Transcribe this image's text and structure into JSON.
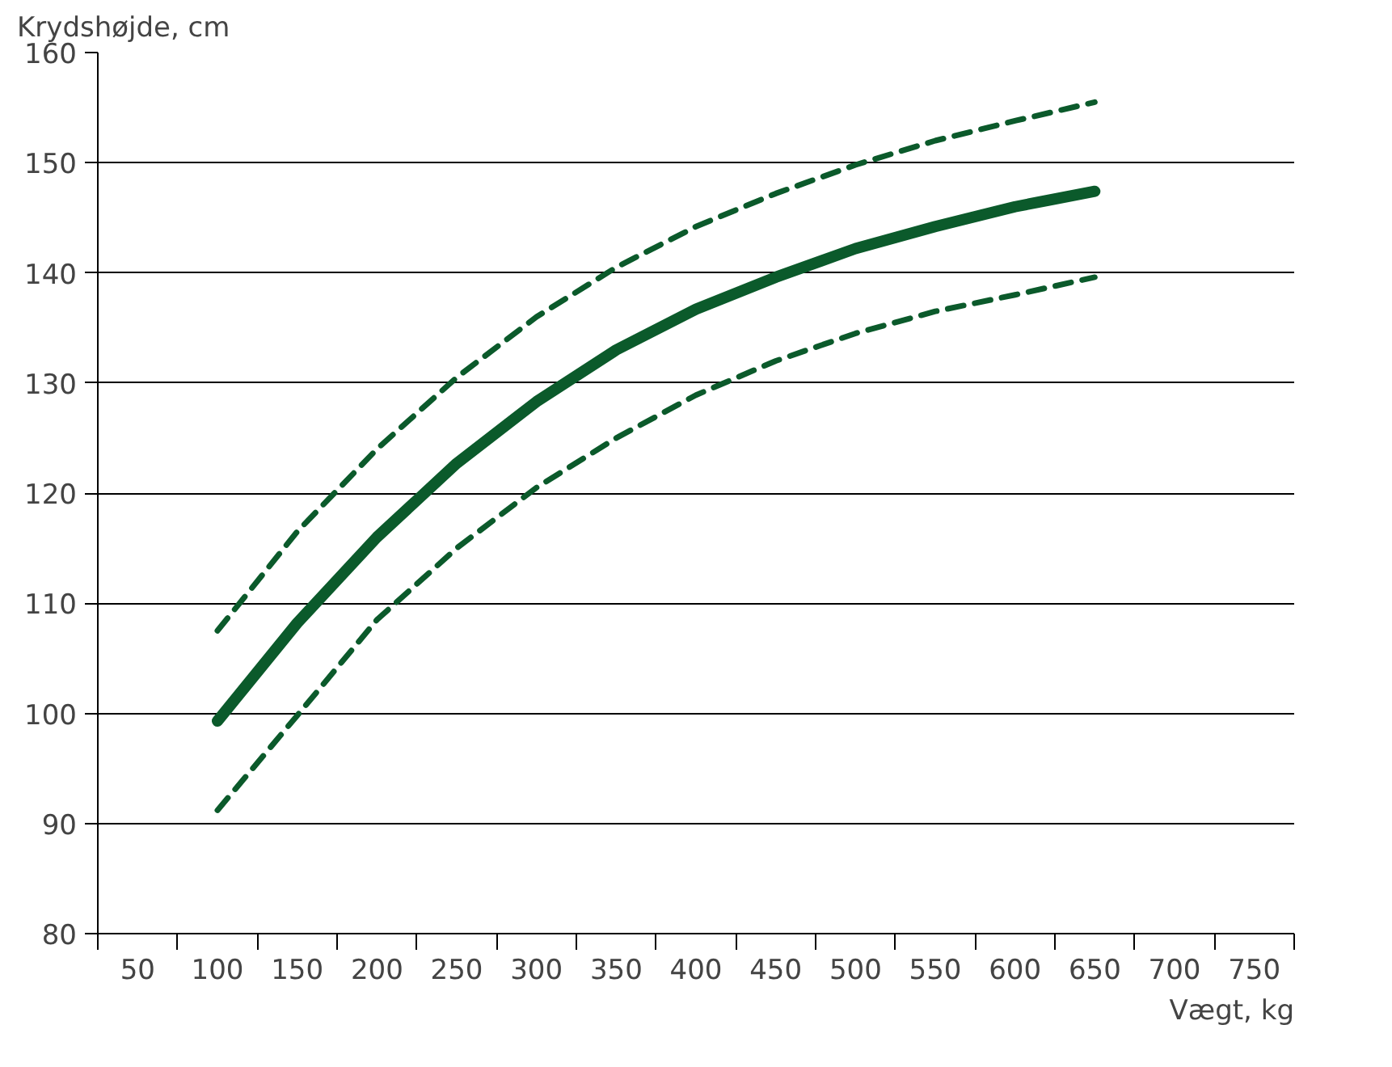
{
  "chart_data": {
    "type": "line",
    "xlabel": "Vægt, kg",
    "ylabel": "Krydshøjde, cm",
    "x": [
      100,
      150,
      200,
      250,
      300,
      350,
      400,
      450,
      500,
      550,
      600,
      650
    ],
    "series": [
      {
        "color": "#0b5a2b",
        "line_style": "solid",
        "values": [
          99.3,
          108.2,
          116,
          122.7,
          128.3,
          133,
          136.7,
          139.6,
          142.2,
          144.2,
          146,
          147.4
        ]
      },
      {
        "color": "#0b5a2b",
        "line_style": "dashed",
        "values": [
          107.5,
          116.5,
          124,
          130.5,
          136,
          140.5,
          144.2,
          147.2,
          149.8,
          152,
          153.8,
          155.5
        ]
      },
      {
        "color": "#0b5a2b",
        "line_style": "dashed",
        "values": [
          91.2,
          99.8,
          108.5,
          115,
          120.5,
          125,
          128.9,
          132,
          134.5,
          136.5,
          138,
          139.6
        ]
      }
    ],
    "xlim": [
      25,
      775
    ],
    "xticks": [
      {
        "value": 25,
        "label": null
      },
      50,
      {
        "value": 75,
        "label": null
      },
      100,
      {
        "value": 125,
        "label": null
      },
      150,
      {
        "value": 175,
        "label": null
      },
      200,
      {
        "value": 225,
        "label": null
      },
      250,
      {
        "value": 275,
        "label": null
      },
      300,
      {
        "value": 325,
        "label": null
      },
      350,
      {
        "value": 375,
        "label": null
      },
      400,
      {
        "value": 425,
        "label": null
      },
      450,
      {
        "value": 475,
        "label": null
      },
      500,
      {
        "value": 525,
        "label": null
      },
      550,
      {
        "value": 575,
        "label": null
      },
      600,
      {
        "value": 625,
        "label": null
      },
      650,
      {
        "value": 675,
        "label": null
      },
      700,
      {
        "value": 725,
        "label": null
      },
      750,
      {
        "value": 775,
        "label": null
      }
    ],
    "ylim": [
      80,
      160
    ],
    "yticks": [
      80,
      90,
      100,
      110,
      120,
      130,
      140,
      150,
      160
    ],
    "grid": "y",
    "marker": "none"
  }
}
